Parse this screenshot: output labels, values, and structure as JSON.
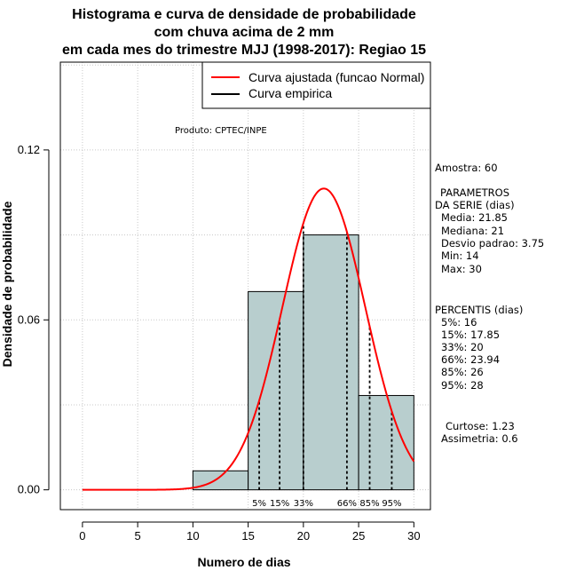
{
  "chart_data": {
    "type": "histogram",
    "title": [
      "Histograma e curva de densidade de probabilidade",
      "com chuva acima de 2 mm",
      "em cada mes do trimestre MJJ (1998-2017): Regiao 15"
    ],
    "xlabel": "Numero de dias",
    "ylabel": "Densidade de probabilidade",
    "xlim": [
      -2,
      31.5
    ],
    "ylim": [
      -0.007,
      0.151
    ],
    "xticks": [
      0,
      5,
      10,
      15,
      20,
      25,
      30
    ],
    "xtick_labels": [
      "0",
      "5",
      "10",
      "15",
      "20",
      "25",
      "30"
    ],
    "yticks": [
      0.0,
      0.06,
      0.12
    ],
    "ytick_labels": [
      "0.00",
      "0.06",
      "0.12"
    ],
    "bins": [
      {
        "x0": 10,
        "x1": 15,
        "density": 0.0067
      },
      {
        "x0": 15,
        "x1": 20,
        "density": 0.07
      },
      {
        "x0": 20,
        "x1": 25,
        "density": 0.09
      },
      {
        "x0": 25,
        "x1": 30,
        "density": 0.0333
      }
    ],
    "normal_fit": {
      "mean": 21.85,
      "sd": 3.75,
      "x_range": [
        0,
        30
      ],
      "color": "#ff0000"
    },
    "bar_color": "#b8cece",
    "percentile_lines": [
      {
        "x": 16,
        "label": "5%"
      },
      {
        "x": 17.85,
        "label": "15%"
      },
      {
        "x": 20,
        "label": "33%"
      },
      {
        "x": 23.94,
        "label": "66%"
      },
      {
        "x": 26,
        "label": "85%"
      },
      {
        "x": 28,
        "label": "95%"
      }
    ],
    "legend": {
      "placement": "top-right",
      "entries": [
        {
          "label": "Curva ajustada (funcao Normal)",
          "color": "#ff0000"
        },
        {
          "label": "Curva empirica",
          "color": "#000000"
        }
      ]
    },
    "annotation": "Produto: CPTEC/INPE",
    "grid": true
  },
  "stats_panel": {
    "amostra": "Amostra: 60",
    "param_title_1": "PARAMETROS",
    "param_title_2": "DA SERIE (dias)",
    "media": "Media: 21.85",
    "mediana": "Mediana: 21",
    "desvio": "Desvio padrao: 3.75",
    "min": "Min: 14",
    "max": "Max: 30",
    "perc_title": "PERCENTIS (dias)",
    "p5": "5%: 16",
    "p15": "15%: 17.85",
    "p33": "33%: 20",
    "p66": "66%: 23.94",
    "p85": "85%: 26",
    "p95": "95%: 28",
    "curtose": "Curtose: 1.23",
    "assimetria": "Assimetria: 0.6"
  }
}
